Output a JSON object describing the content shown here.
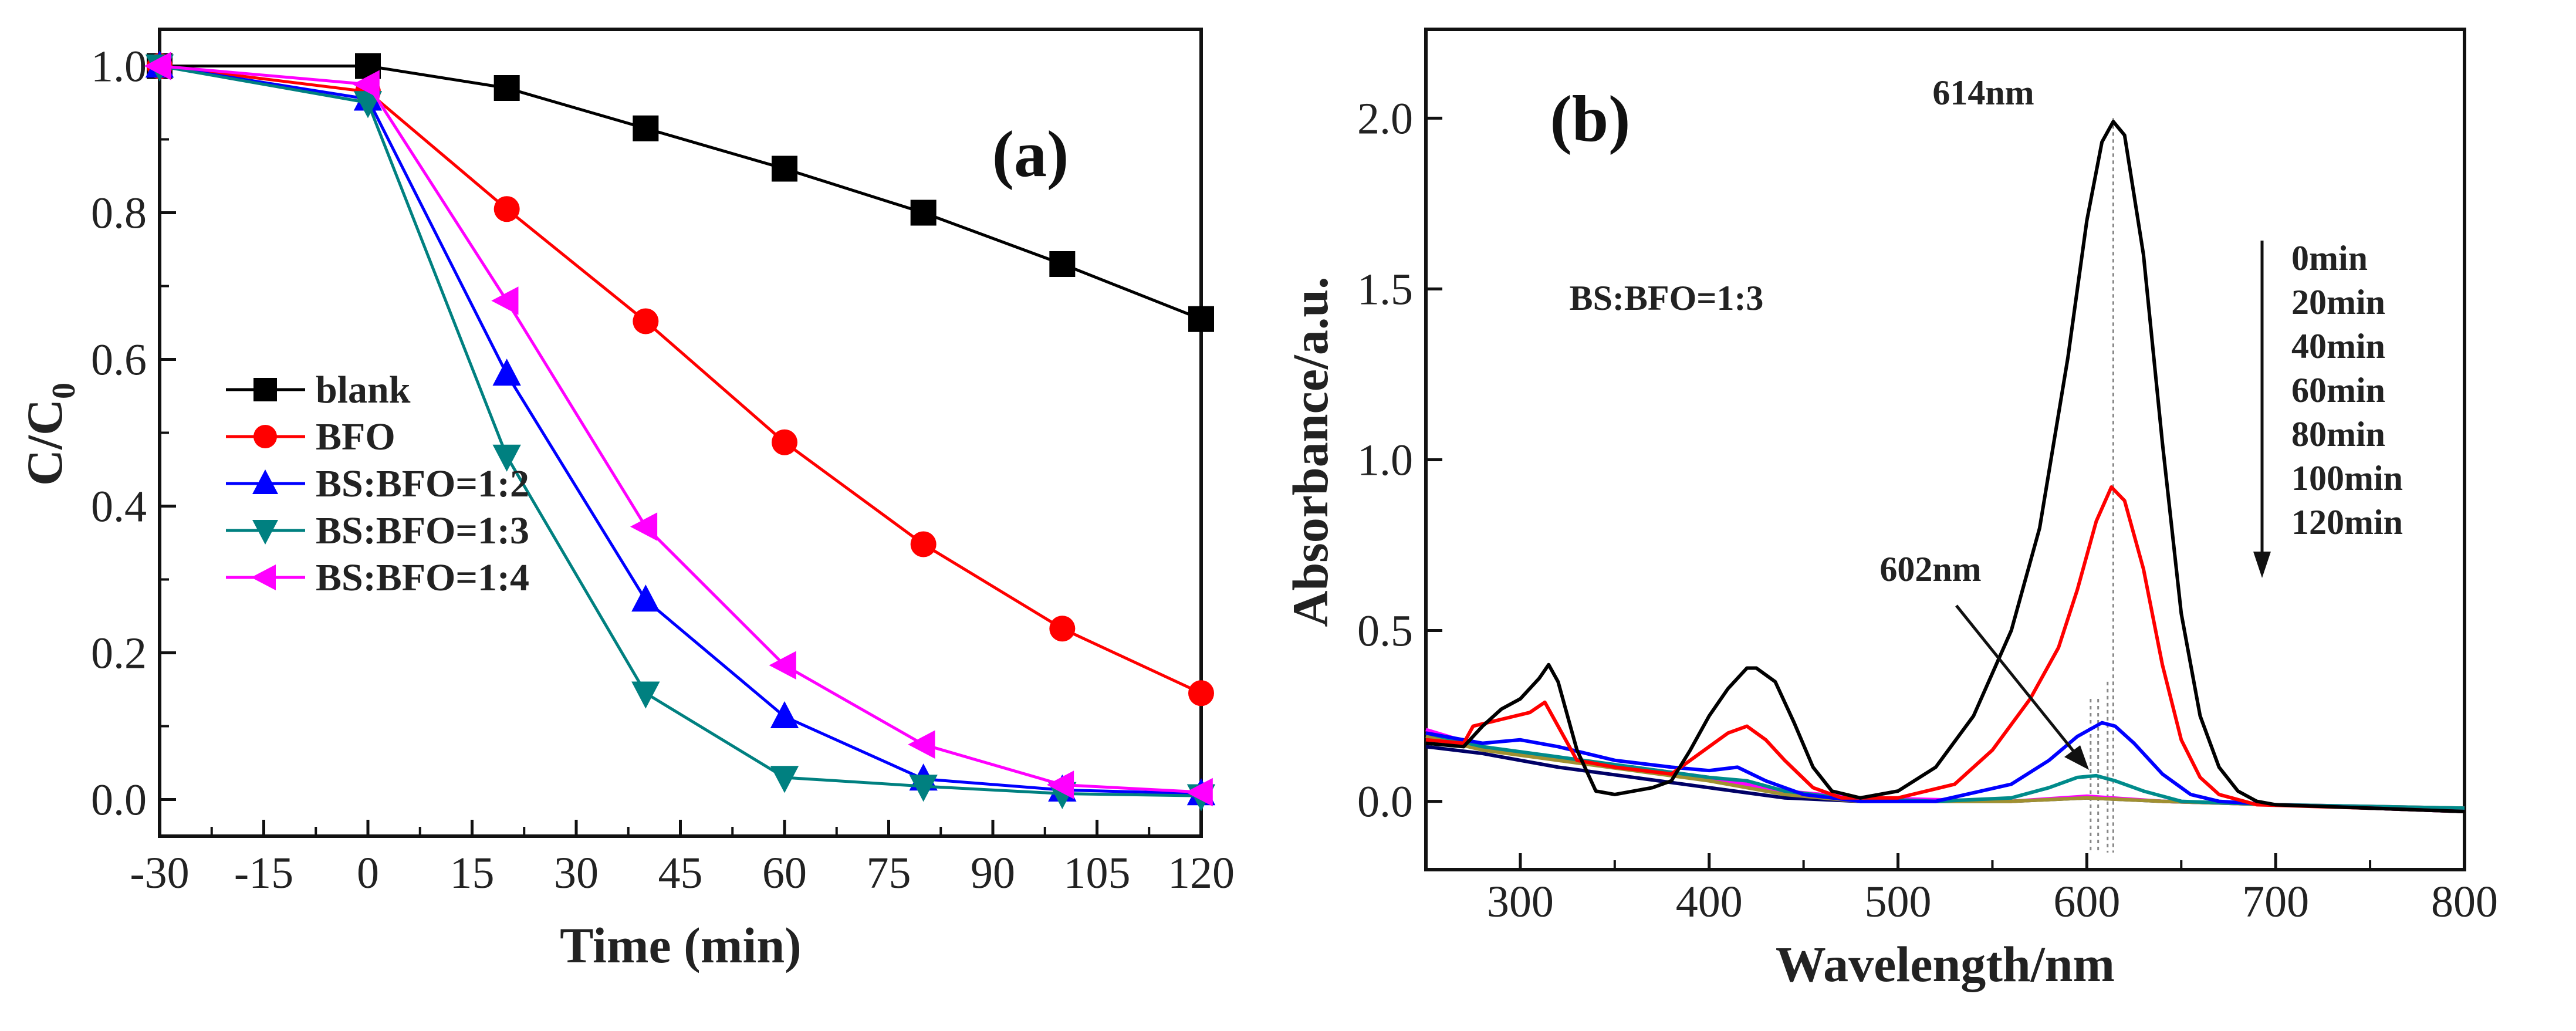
{
  "chart_data": [
    {
      "type": "line",
      "panel_label": "(a)",
      "xlabel": "Time (min)",
      "ylabel_main": "C/C",
      "ylabel_sub": "0",
      "xlim": [
        -30,
        120
      ],
      "ylim": [
        -0.05,
        1.05
      ],
      "xticks": [
        -30,
        -15,
        0,
        15,
        30,
        45,
        60,
        75,
        90,
        105,
        120
      ],
      "yticks": [
        "0.0",
        "0.2",
        "0.4",
        "0.6",
        "0.8",
        "1.0"
      ],
      "legend_position": "center-left",
      "x": [
        -30,
        0,
        20,
        40,
        60,
        80,
        100,
        120
      ],
      "series": [
        {
          "name": "blank",
          "color": "#000000",
          "marker": "square",
          "values": [
            1.0,
            1.0,
            0.97,
            0.915,
            0.86,
            0.8,
            0.73,
            0.655
          ]
        },
        {
          "name": "BFO",
          "color": "#ff0000",
          "marker": "circle",
          "values": [
            1.0,
            0.965,
            0.805,
            0.652,
            0.487,
            0.348,
            0.233,
            0.145
          ]
        },
        {
          "name": "BS:BFO=1:2",
          "color": "#0000ff",
          "marker": "triangle-up",
          "values": [
            1.0,
            0.955,
            0.58,
            0.272,
            0.113,
            0.028,
            0.013,
            0.008
          ]
        },
        {
          "name": "BS:BFO=1:3",
          "color": "#008080",
          "marker": "triangle-down",
          "values": [
            1.0,
            0.95,
            0.468,
            0.145,
            0.03,
            0.018,
            0.008,
            0.005
          ]
        },
        {
          "name": "BS:BFO=1:4",
          "color": "#ff00ff",
          "marker": "triangle-left",
          "values": [
            1.0,
            0.975,
            0.68,
            0.372,
            0.183,
            0.075,
            0.02,
            0.01
          ]
        }
      ]
    },
    {
      "type": "line",
      "panel_label": "(b)",
      "xlabel": "Wavelength/nm",
      "ylabel": "Absorbance/a.u.",
      "xlim": [
        250,
        800
      ],
      "ylim": [
        -0.2,
        2.26
      ],
      "xticks": [
        300,
        400,
        500,
        600,
        700,
        800
      ],
      "yticks": [
        "0.0",
        "0.5",
        "1.0",
        "1.5",
        "2.0"
      ],
      "annotations": {
        "peak_main": "614nm",
        "peak_shift": "602nm",
        "sample": "BS:BFO=1:3"
      },
      "arrow_direction": "down",
      "series": [
        {
          "name": "0min",
          "color": "#000000",
          "points": [
            [
              250,
              0.17
            ],
            [
              270,
              0.16
            ],
            [
              280,
              0.22
            ],
            [
              290,
              0.27
            ],
            [
              300,
              0.3
            ],
            [
              310,
              0.36
            ],
            [
              315,
              0.4
            ],
            [
              320,
              0.35
            ],
            [
              330,
              0.15
            ],
            [
              340,
              0.03
            ],
            [
              350,
              0.02
            ],
            [
              370,
              0.04
            ],
            [
              380,
              0.06
            ],
            [
              390,
              0.15
            ],
            [
              400,
              0.25
            ],
            [
              410,
              0.33
            ],
            [
              420,
              0.39
            ],
            [
              425,
              0.39
            ],
            [
              435,
              0.35
            ],
            [
              445,
              0.23
            ],
            [
              455,
              0.1
            ],
            [
              465,
              0.03
            ],
            [
              480,
              0.01
            ],
            [
              500,
              0.03
            ],
            [
              520,
              0.1
            ],
            [
              540,
              0.25
            ],
            [
              560,
              0.5
            ],
            [
              575,
              0.8
            ],
            [
              590,
              1.3
            ],
            [
              600,
              1.7
            ],
            [
              608,
              1.93
            ],
            [
              614,
              1.99
            ],
            [
              620,
              1.95
            ],
            [
              630,
              1.6
            ],
            [
              640,
              1.05
            ],
            [
              650,
              0.55
            ],
            [
              660,
              0.25
            ],
            [
              670,
              0.1
            ],
            [
              680,
              0.03
            ],
            [
              690,
              0.0
            ],
            [
              700,
              -0.01
            ],
            [
              750,
              -0.02
            ],
            [
              800,
              -0.03
            ]
          ]
        },
        {
          "name": "20min",
          "color": "#ff0000",
          "points": [
            [
              250,
              0.18
            ],
            [
              270,
              0.17
            ],
            [
              275,
              0.22
            ],
            [
              290,
              0.24
            ],
            [
              305,
              0.26
            ],
            [
              313,
              0.29
            ],
            [
              320,
              0.22
            ],
            [
              330,
              0.12
            ],
            [
              350,
              0.1
            ],
            [
              380,
              0.08
            ],
            [
              390,
              0.12
            ],
            [
              400,
              0.16
            ],
            [
              410,
              0.2
            ],
            [
              420,
              0.22
            ],
            [
              430,
              0.18
            ],
            [
              440,
              0.12
            ],
            [
              455,
              0.04
            ],
            [
              470,
              0.01
            ],
            [
              500,
              0.01
            ],
            [
              530,
              0.05
            ],
            [
              550,
              0.15
            ],
            [
              570,
              0.3
            ],
            [
              585,
              0.45
            ],
            [
              595,
              0.62
            ],
            [
              605,
              0.82
            ],
            [
              613,
              0.92
            ],
            [
              620,
              0.88
            ],
            [
              630,
              0.68
            ],
            [
              640,
              0.4
            ],
            [
              650,
              0.18
            ],
            [
              660,
              0.07
            ],
            [
              670,
              0.02
            ],
            [
              690,
              -0.01
            ],
            [
              750,
              -0.02
            ],
            [
              800,
              -0.03
            ]
          ]
        },
        {
          "name": "40min",
          "color": "#0000ff",
          "points": [
            [
              250,
              0.2
            ],
            [
              280,
              0.17
            ],
            [
              300,
              0.18
            ],
            [
              320,
              0.16
            ],
            [
              350,
              0.12
            ],
            [
              380,
              0.1
            ],
            [
              400,
              0.09
            ],
            [
              415,
              0.1
            ],
            [
              430,
              0.06
            ],
            [
              450,
              0.02
            ],
            [
              480,
              0.0
            ],
            [
              520,
              0.0
            ],
            [
              560,
              0.05
            ],
            [
              580,
              0.12
            ],
            [
              595,
              0.19
            ],
            [
              608,
              0.23
            ],
            [
              615,
              0.22
            ],
            [
              625,
              0.17
            ],
            [
              640,
              0.08
            ],
            [
              655,
              0.02
            ],
            [
              670,
              0.0
            ],
            [
              700,
              -0.01
            ],
            [
              800,
              -0.03
            ]
          ]
        },
        {
          "name": "60min",
          "color": "#008b8b",
          "points": [
            [
              250,
              0.2
            ],
            [
              280,
              0.16
            ],
            [
              320,
              0.13
            ],
            [
              360,
              0.1
            ],
            [
              400,
              0.07
            ],
            [
              420,
              0.06
            ],
            [
              440,
              0.03
            ],
            [
              470,
              0.01
            ],
            [
              520,
              0.0
            ],
            [
              560,
              0.01
            ],
            [
              580,
              0.04
            ],
            [
              595,
              0.07
            ],
            [
              605,
              0.075
            ],
            [
              615,
              0.06
            ],
            [
              630,
              0.03
            ],
            [
              650,
              0.0
            ],
            [
              700,
              -0.01
            ],
            [
              800,
              -0.02
            ]
          ]
        },
        {
          "name": "80min",
          "color": "#a09030",
          "points": [
            [
              250,
              0.19
            ],
            [
              280,
              0.15
            ],
            [
              320,
              0.12
            ],
            [
              360,
              0.09
            ],
            [
              400,
              0.06
            ],
            [
              440,
              0.02
            ],
            [
              480,
              0.0
            ],
            [
              560,
              0.0
            ],
            [
              600,
              0.01
            ],
            [
              640,
              0.0
            ],
            [
              700,
              -0.01
            ],
            [
              800,
              -0.02
            ]
          ]
        },
        {
          "name": "100min",
          "color": "#ff00ff",
          "points": [
            [
              250,
              0.21
            ],
            [
              280,
              0.16
            ],
            [
              320,
              0.12
            ],
            [
              360,
              0.1
            ],
            [
              400,
              0.07
            ],
            [
              440,
              0.03
            ],
            [
              480,
              0.01
            ],
            [
              560,
              0.0
            ],
            [
              600,
              0.015
            ],
            [
              640,
              0.0
            ],
            [
              700,
              -0.01
            ],
            [
              800,
              -0.02
            ]
          ]
        },
        {
          "name": "120min",
          "color": "#000066",
          "points": [
            [
              250,
              0.16
            ],
            [
              280,
              0.14
            ],
            [
              320,
              0.1
            ],
            [
              360,
              0.07
            ],
            [
              400,
              0.04
            ],
            [
              440,
              0.01
            ],
            [
              480,
              0.0
            ],
            [
              560,
              0.0
            ],
            [
              600,
              0.01
            ],
            [
              640,
              0.0
            ],
            [
              700,
              -0.01
            ],
            [
              800,
              -0.03
            ]
          ]
        }
      ]
    }
  ]
}
